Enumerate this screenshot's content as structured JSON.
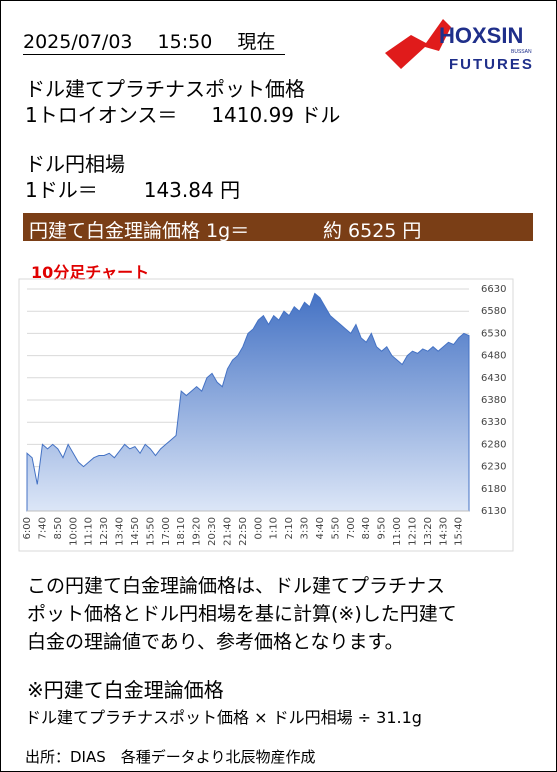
{
  "header": {
    "datetime": "2025/07/03　 15:50 　現在",
    "logo_name": "HOXSIN",
    "logo_sub": "BUSSAN",
    "logo_futures": "FUTURES"
  },
  "platinum": {
    "label": "ドル建てプラチナスポット価格",
    "unit": "1トロイオンス＝",
    "price": "1410.99",
    "currency": "ドル"
  },
  "fx": {
    "label": "ドル円相場",
    "unit": "1ドル＝",
    "rate": "143.84",
    "currency": "円"
  },
  "theory": {
    "label": "円建て白金理論価格 1g＝",
    "value": "約 6525 円"
  },
  "chart_data": {
    "type": "area",
    "title": "10分足チャート",
    "categories": [
      "6:00",
      null,
      null,
      "7:40",
      null,
      null,
      "8:50",
      null,
      null,
      "10:00",
      null,
      null,
      "11:10",
      null,
      null,
      "12:30",
      null,
      null,
      "13:40",
      null,
      null,
      "14:50",
      null,
      null,
      "15:50",
      null,
      null,
      "17:00",
      null,
      null,
      "18:10",
      null,
      null,
      "19:20",
      null,
      null,
      "20:30",
      null,
      null,
      "21:40",
      null,
      null,
      "22:50",
      null,
      null,
      "0:00",
      null,
      null,
      "1:10",
      null,
      null,
      "2:10",
      null,
      null,
      "3:30",
      null,
      null,
      "4:40",
      null,
      null,
      "5:50",
      null,
      null,
      "7:00",
      null,
      null,
      "8:40",
      null,
      null,
      "9:50",
      null,
      null,
      "11:00",
      null,
      null,
      "12:10",
      null,
      null,
      "13:20",
      null,
      null,
      "14:30",
      null,
      null,
      "15:40",
      null,
      null
    ],
    "values": [
      6260,
      6250,
      6190,
      6280,
      6270,
      6280,
      6270,
      6250,
      6280,
      6260,
      6240,
      6230,
      6240,
      6250,
      6255,
      6255,
      6260,
      6250,
      6265,
      6280,
      6270,
      6275,
      6260,
      6280,
      6270,
      6255,
      6270,
      6280,
      6290,
      6300,
      6400,
      6390,
      6400,
      6410,
      6400,
      6430,
      6440,
      6420,
      6410,
      6450,
      6470,
      6480,
      6500,
      6530,
      6540,
      6560,
      6570,
      6550,
      6570,
      6560,
      6580,
      6570,
      6590,
      6580,
      6600,
      6590,
      6620,
      6610,
      6590,
      6570,
      6560,
      6550,
      6540,
      6530,
      6550,
      6520,
      6510,
      6530,
      6500,
      6490,
      6500,
      6480,
      6470,
      6460,
      6480,
      6490,
      6485,
      6495,
      6490,
      6500,
      6490,
      6500,
      6510,
      6505,
      6520,
      6530,
      6525
    ],
    "color": "#4472c4",
    "ylim": [
      6130,
      6630
    ],
    "yticks": [
      6130,
      6180,
      6230,
      6280,
      6330,
      6380,
      6430,
      6480,
      6530,
      6580,
      6630
    ],
    "grid": true
  },
  "note": {
    "lines": [
      "この円建て白金理論価格は、ドル建てプラチナス",
      "ポット価格とドル円相場を基に計算(※)した円建て",
      "白金の理論値であり、参考価格となります。"
    ]
  },
  "formula": {
    "title": "※円建て白金理論価格",
    "text": "ドル建てプラチナスポット価格 × ドル円相場 ÷ 31.1g"
  },
  "source": "出所：DIAS　各種データより北辰物産作成"
}
